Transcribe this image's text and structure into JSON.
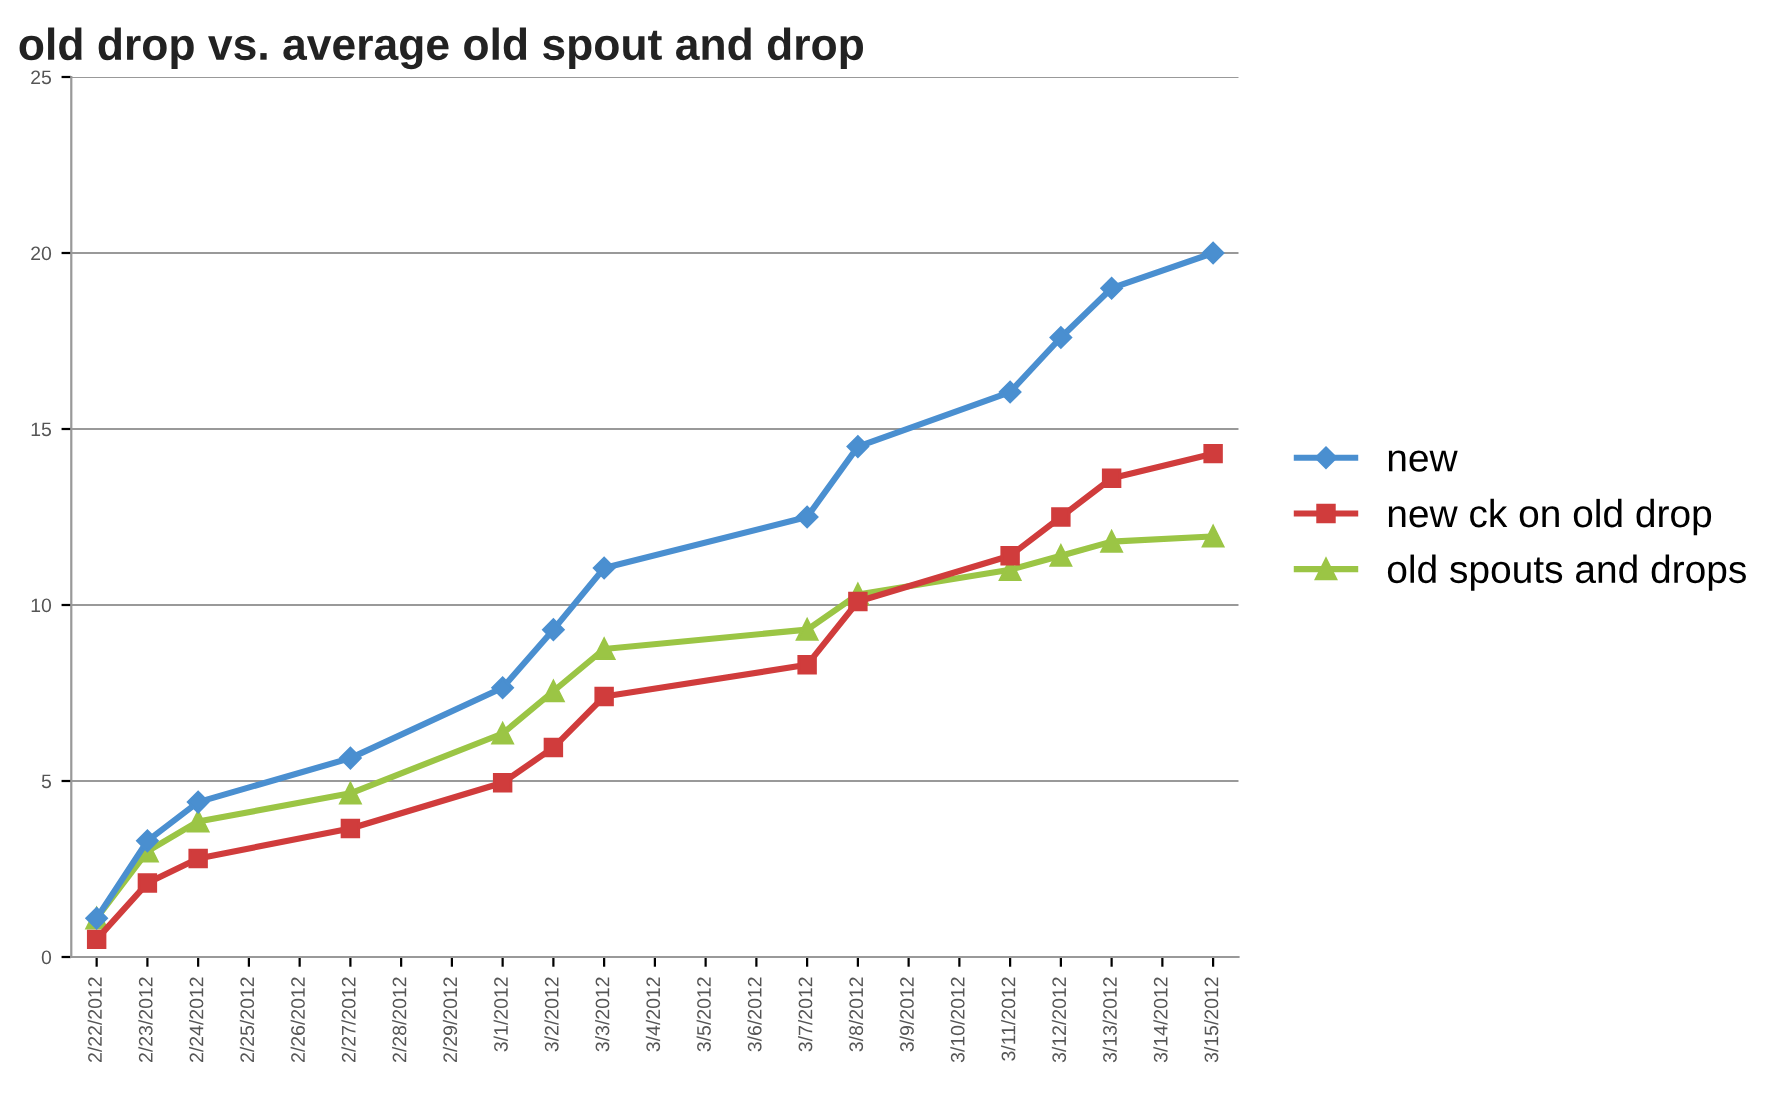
{
  "chart_data": {
    "type": "line",
    "title": "old drop vs. average old spout and drop",
    "x": [
      "2012-02-22",
      "2012-02-23",
      "2012-02-24",
      "2012-02-27",
      "2012-03-01",
      "2012-03-02",
      "2012-03-03",
      "2012-03-07",
      "2012-03-08",
      "2012-03-11",
      "2012-03-12",
      "2012-03-13",
      "2012-03-15"
    ],
    "series": [
      {
        "name": "new",
        "color": "#4a8fd0",
        "marker": "diamond",
        "values": [
          1.1,
          3.3,
          4.4,
          5.65,
          7.65,
          9.3,
          11.05,
          12.5,
          14.5,
          16.05,
          17.6,
          19.0,
          20.0
        ]
      },
      {
        "name": "new ck on old drop",
        "color": "#d03c3c",
        "marker": "square",
        "values": [
          0.5,
          2.1,
          2.8,
          3.65,
          4.95,
          5.95,
          7.4,
          8.3,
          10.1,
          11.4,
          12.5,
          13.6,
          14.3
        ]
      },
      {
        "name": "old spouts and drops",
        "color": "#9bc545",
        "marker": "triangle",
        "values": [
          1.1,
          3.0,
          3.85,
          4.65,
          6.35,
          7.55,
          8.75,
          9.3,
          10.3,
          11.0,
          11.4,
          11.8,
          11.95
        ]
      }
    ],
    "xlim": [
      "2012-02-21T12:00",
      "2012-03-15T12:00"
    ],
    "xticks": [
      {
        "value": "2012-02-22",
        "label": "2/22/2012"
      },
      {
        "value": "2012-02-23",
        "label": "2/23/2012"
      },
      {
        "value": "2012-02-24",
        "label": "2/24/2012"
      },
      {
        "value": "2012-02-25",
        "label": "2/25/2012"
      },
      {
        "value": "2012-02-26",
        "label": "2/26/2012"
      },
      {
        "value": "2012-02-27",
        "label": "2/27/2012"
      },
      {
        "value": "2012-02-28",
        "label": "2/28/2012"
      },
      {
        "value": "2012-02-29",
        "label": "2/29/2012"
      },
      {
        "value": "2012-03-01",
        "label": "3/1/2012"
      },
      {
        "value": "2012-03-02",
        "label": "3/2/2012"
      },
      {
        "value": "2012-03-03",
        "label": "3/3/2012"
      },
      {
        "value": "2012-03-04",
        "label": "3/4/2012"
      },
      {
        "value": "2012-03-05",
        "label": "3/5/2012"
      },
      {
        "value": "2012-03-06",
        "label": "3/6/2012"
      },
      {
        "value": "2012-03-07",
        "label": "3/7/2012"
      },
      {
        "value": "2012-03-08",
        "label": "3/8/2012"
      },
      {
        "value": "2012-03-09",
        "label": "3/9/2012"
      },
      {
        "value": "2012-03-10",
        "label": "3/10/2012"
      },
      {
        "value": "2012-03-11",
        "label": "3/11/2012"
      },
      {
        "value": "2012-03-12",
        "label": "3/12/2012"
      },
      {
        "value": "2012-03-13",
        "label": "3/13/2012"
      },
      {
        "value": "2012-03-14",
        "label": "3/14/2012"
      },
      {
        "value": "2012-03-15",
        "label": "3/15/2012"
      }
    ],
    "ylim": [
      0,
      25
    ],
    "yticks": [
      0,
      5,
      10,
      15,
      20,
      25
    ],
    "grid": "y",
    "legend": "right",
    "line_style": "solid"
  }
}
